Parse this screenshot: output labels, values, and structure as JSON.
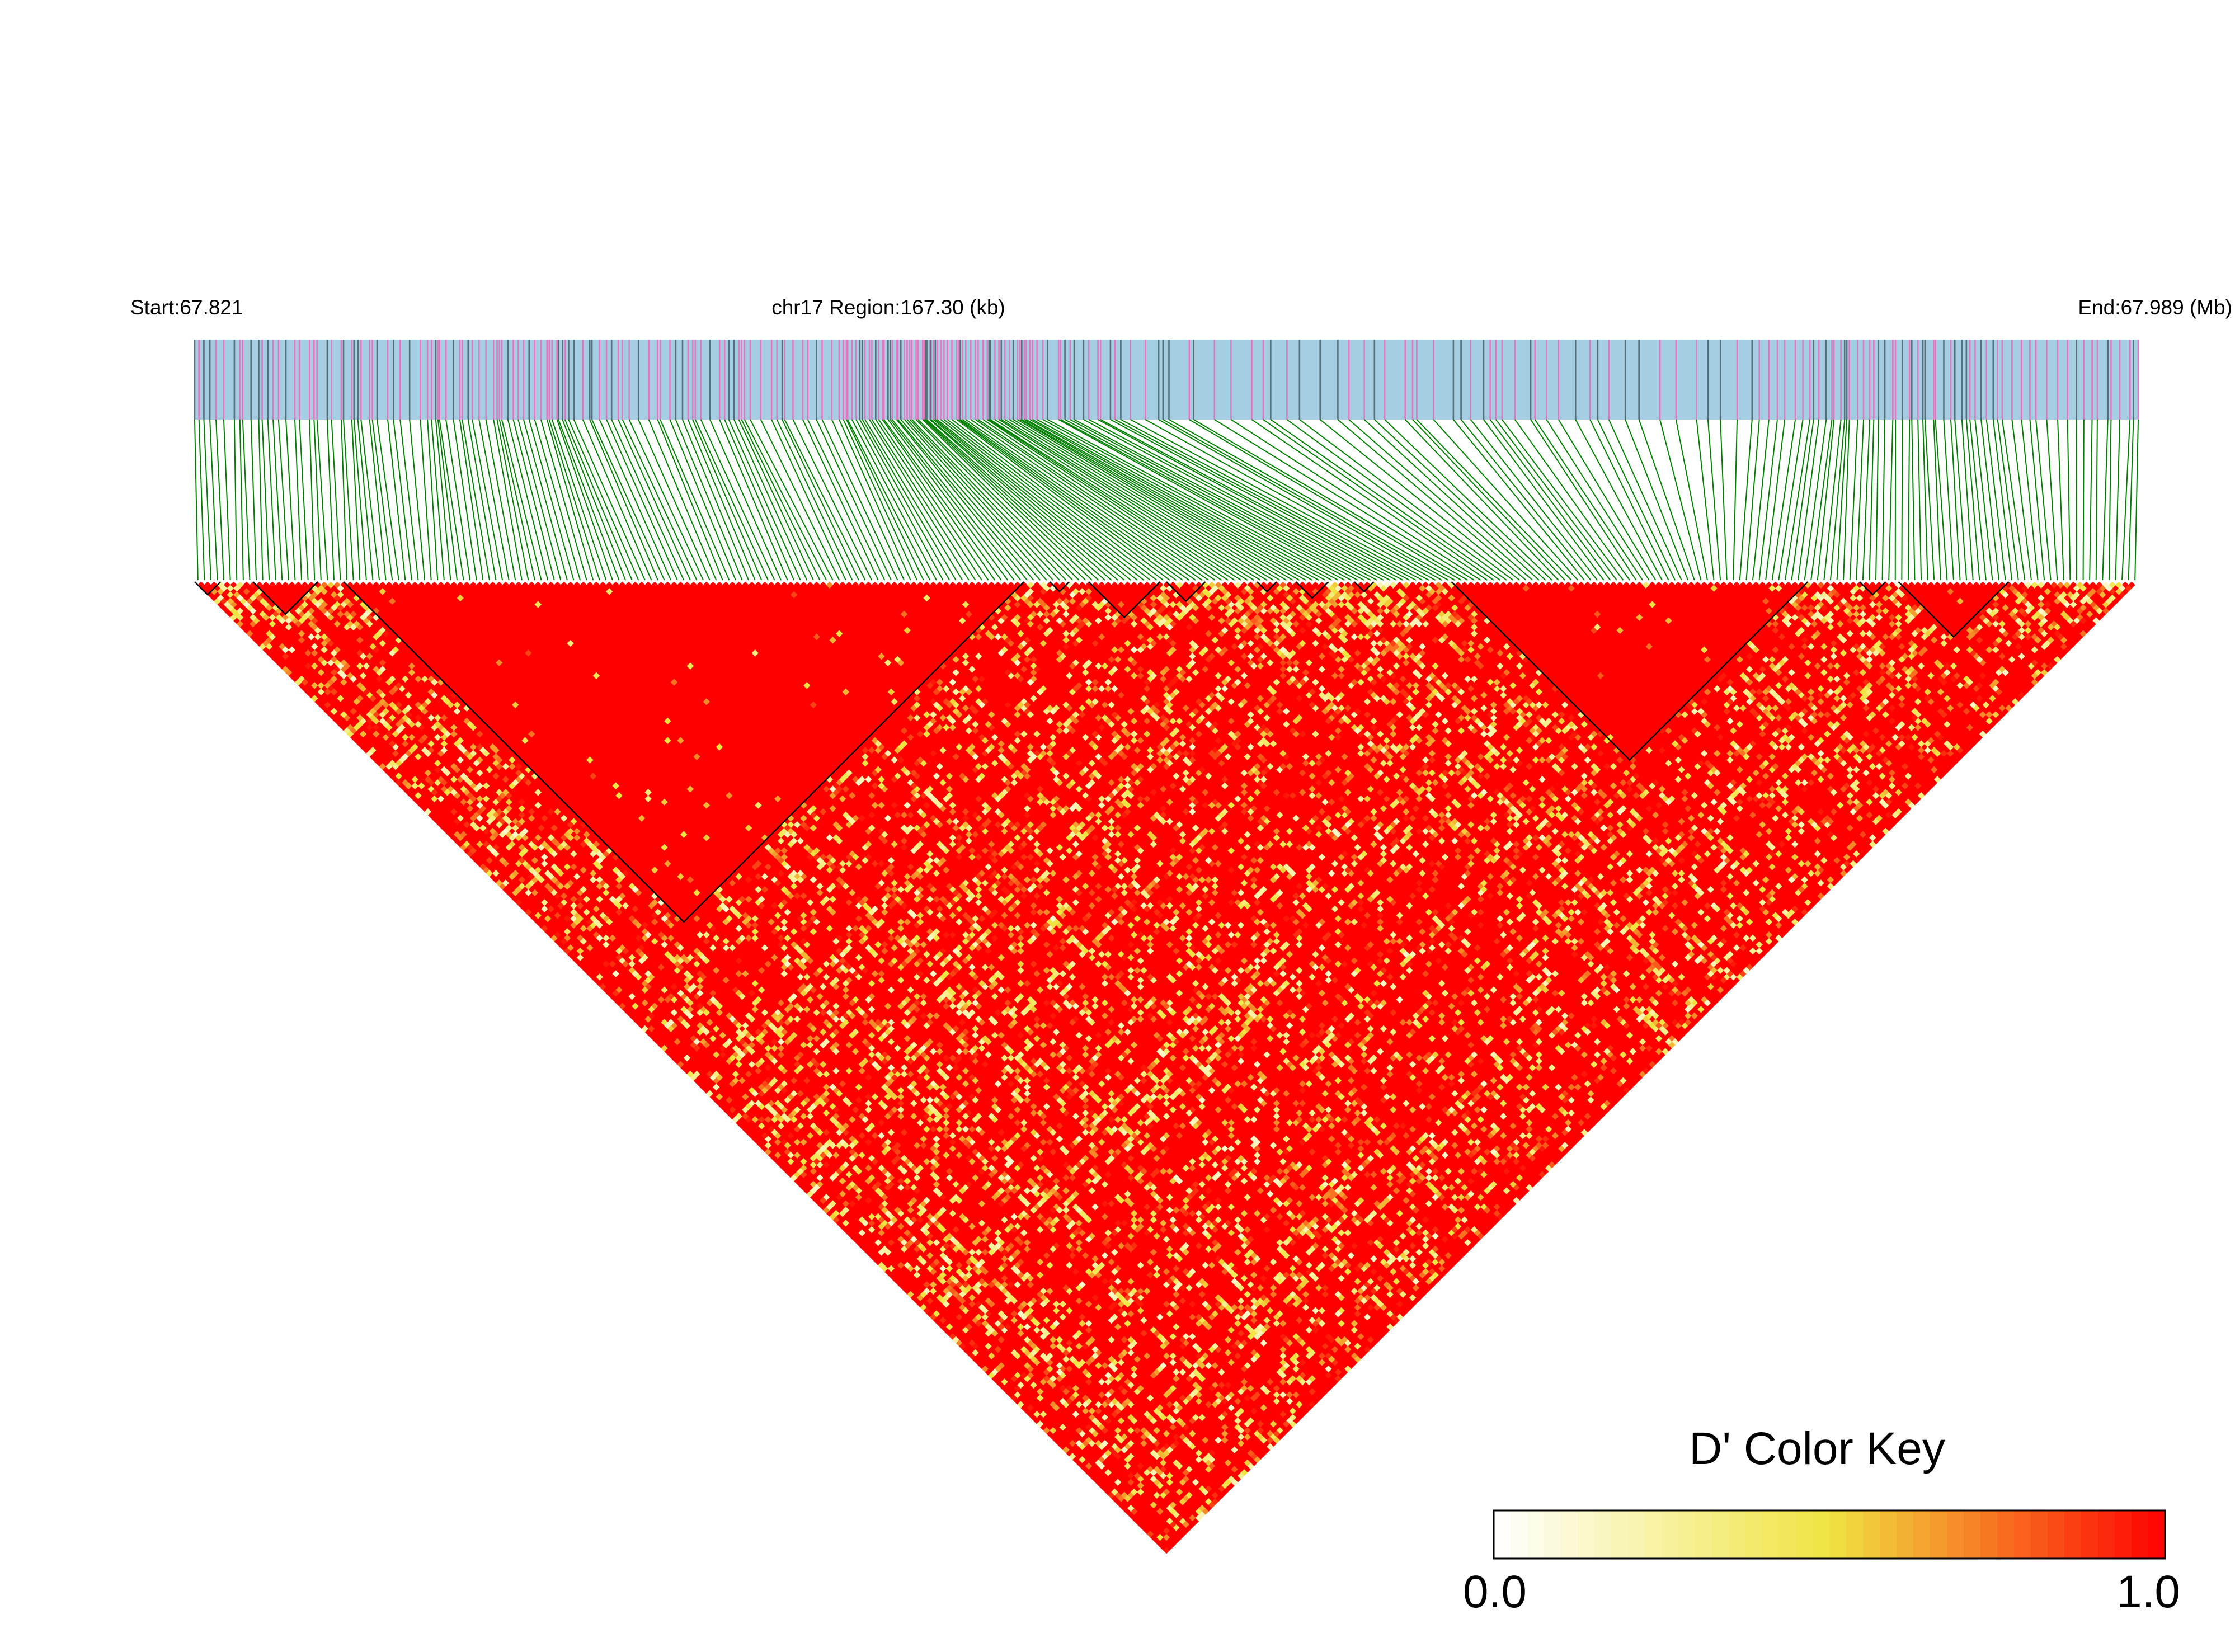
{
  "chart_data": {
    "type": "heatmap",
    "subtype": "linkage-disequilibrium-triangle",
    "measure": "D'",
    "header": {
      "start_label": "Start:67.821",
      "region_label": "chr17 Region:167.30 (kb)",
      "end_label": "End:67.989 (Mb)"
    },
    "region": {
      "chromosome": "chr17",
      "start_mb": 67.821,
      "end_mb": 67.989,
      "length_kb": 167.3
    },
    "snp_count": 300,
    "haplotype_blocks": [
      {
        "from": 0,
        "to": 3
      },
      {
        "from": 9,
        "to": 18
      },
      {
        "from": 23,
        "to": 127
      },
      {
        "from": 132,
        "to": 134
      },
      {
        "from": 138,
        "to": 148
      },
      {
        "from": 150,
        "to": 155
      },
      {
        "from": 164,
        "to": 166
      },
      {
        "from": 170,
        "to": 174
      },
      {
        "from": 179,
        "to": 181
      },
      {
        "from": 194,
        "to": 248
      },
      {
        "from": 257,
        "to": 260
      },
      {
        "from": 263,
        "to": 279
      }
    ],
    "color_key": {
      "title": "D' Color Key",
      "min_label": "0.0",
      "max_label": "1.0",
      "min": 0.0,
      "max": 1.0,
      "colors": [
        "#ffffff",
        "#f0e442",
        "#ff0000"
      ]
    },
    "colors": {
      "high_ld": "#ff0000",
      "header_bar": "#a6cee3",
      "snp_tick_pink": "#e377c2",
      "snp_tick_dark": "#55707a",
      "connector_lines": "#008000",
      "block_outline": "#000000"
    }
  }
}
